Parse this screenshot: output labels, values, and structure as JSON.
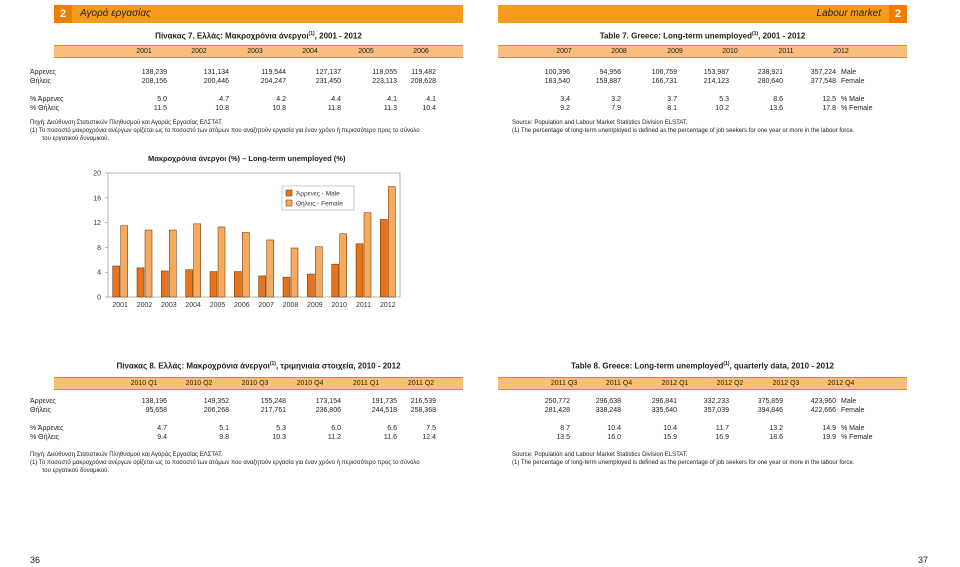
{
  "header": {
    "left_num": "2",
    "left_title": "Αγορά εργασίας",
    "right_title": "Labour market",
    "right_num": "2"
  },
  "table7": {
    "title_gr": "Πίνακας 7. Ελλάς: Μακροχρόνια άνεργοι",
    "title_gr_sup": "(1)",
    "title_gr_tail": ", 2001 - 2012",
    "title_en": "Table 7. Greece: Long-term unemployed",
    "title_en_sup": "(1)",
    "title_en_tail": ", 2001 - 2012",
    "years_left": [
      "2001",
      "2002",
      "2003",
      "2004",
      "2005",
      "2006"
    ],
    "years_right": [
      "2007",
      "2008",
      "2009",
      "2010",
      "2011",
      "2012"
    ],
    "rows": [
      {
        "label_gr": "Άρρενες",
        "label_en": "Male",
        "left": [
          "138,239",
          "131,134",
          "119,544",
          "127,137",
          "118,055",
          "119,482"
        ],
        "right": [
          "100,396",
          "94,956",
          "106,759",
          "153,987",
          "238,921",
          "357,224"
        ]
      },
      {
        "label_gr": "Θήλεις",
        "label_en": "Female",
        "left": [
          "208,156",
          "200,446",
          "204,247",
          "231,450",
          "223,113",
          "208,628"
        ],
        "right": [
          "183,540",
          "159,887",
          "166,731",
          "214,123",
          "280,640",
          "377,548"
        ]
      },
      {
        "label_gr": "% Άρρενες",
        "label_en": "% Male",
        "left": [
          "5.0",
          "4.7",
          "4.2",
          "4.4",
          "4.1",
          "4.1"
        ],
        "right": [
          "3.4",
          "3.2",
          "3.7",
          "5.3",
          "8.6",
          "12.5"
        ]
      },
      {
        "label_gr": "% Θήλεις",
        "label_en": "% Female",
        "left": [
          "11.5",
          "10.8",
          "10.8",
          "11.8",
          "11.3",
          "10.4"
        ],
        "right": [
          "9.2",
          "7.9",
          "8.1",
          "10.2",
          "13.6",
          "17.8"
        ]
      }
    ],
    "source_gr": "Πηγή: Διεύθυνση Στατιστικών Πληθυσμού και Αγοράς Εργασίας ΕΛΣΤΑΤ.",
    "note_gr_1": "(1) Το ποσοστό μακροχρόνια ανέργων ορίζεται ως το ποσοστό των ατόμων που αναζητούν εργασία για έναν χρόνο ή περισσότερο προς το σύνολο",
    "note_gr_2": "του εργατικού δυναμικού.",
    "source_en": "Source: Population and Labour Market Statistics Division ELSTAT.",
    "note_en": "(1) The percentage of long-term unemployed is defined as the percentage of job seekers for one year or more in the labour force."
  },
  "chart_data": {
    "type": "bar",
    "title": "Μακροχρόνια άνεργοι (%) – Long-term unemployed (%)",
    "categories": [
      "2001",
      "2002",
      "2003",
      "2004",
      "2005",
      "2006",
      "2007",
      "2008",
      "2009",
      "2010",
      "2011",
      "2012"
    ],
    "series": [
      {
        "name": "Άρρενες - Male",
        "color": "#e8731a",
        "values": [
          5.0,
          4.7,
          4.2,
          4.4,
          4.1,
          4.1,
          3.4,
          3.2,
          3.7,
          5.3,
          8.6,
          12.5
        ]
      },
      {
        "name": "Θήλεις - Female",
        "color": "#f7a95e",
        "values": [
          11.5,
          10.8,
          10.8,
          11.8,
          11.3,
          10.4,
          9.2,
          7.9,
          8.1,
          10.2,
          13.6,
          17.8
        ]
      }
    ],
    "ylim": [
      0,
      20
    ],
    "yticks": [
      0,
      4,
      8,
      12,
      16,
      20
    ],
    "legend": "top-right"
  },
  "table8": {
    "title_gr": "Πίνακας 8. Ελλάς: Μακροχρόνια άνεργοι",
    "title_gr_sup": "(1)",
    "title_gr_tail": ", τριμηνιαία στοιχεία, 2010 - 2012",
    "title_en": "Table 8. Greece: Long-term unemployed",
    "title_en_sup": "(1)",
    "title_en_tail": ", quarterly data, 2010 - 2012",
    "periods_left": [
      "2010 Q1",
      "2010 Q2",
      "2010 Q3",
      "2010 Q4",
      "2011 Q1",
      "2011 Q2"
    ],
    "periods_right": [
      "2011 Q3",
      "2011 Q4",
      "2012 Q1",
      "2012 Q2",
      "2012 Q3",
      "2012 Q4"
    ],
    "rows": [
      {
        "label_gr": "Άρρενες",
        "label_en": "Male",
        "left": [
          "138,196",
          "149,352",
          "155,248",
          "173,154",
          "191,735",
          "216,539"
        ],
        "right": [
          "250,772",
          "296,638",
          "296,841",
          "332,233",
          "375,859",
          "423,960"
        ]
      },
      {
        "label_gr": "Θήλεις",
        "label_en": "Female",
        "left": [
          "95,658",
          "206,268",
          "217,761",
          "236,806",
          "244,518",
          "258,368"
        ],
        "right": [
          "281,428",
          "338,248",
          "335,640",
          "357,039",
          "394,846",
          "422,666"
        ]
      },
      {
        "label_gr": "% Άρρενες",
        "label_en": "% Male",
        "left": [
          "4.7",
          "5.1",
          "5.3",
          "6.0",
          "6.6",
          "7.5"
        ],
        "right": [
          "8.7",
          "10.4",
          "10.4",
          "11.7",
          "13.2",
          "14.9"
        ]
      },
      {
        "label_gr": "% Θήλεις",
        "label_en": "% Female",
        "left": [
          "9.4",
          "9.8",
          "10.3",
          "11.2",
          "11.6",
          "12.4"
        ],
        "right": [
          "13.5",
          "16.0",
          "15.9",
          "16.9",
          "18.6",
          "19.9"
        ]
      }
    ],
    "source_gr": "Πηγή: Διεύθυνση Στατιστικών Πληθυσμού και Αγοράς Εργασίας ΕΛΣΤΑΤ.",
    "note_gr_1": "(1) Το ποσοστό μακροχρόνια ανέργων ορίζεται ως το ποσοστό των ατόμων που αναζητούν εργασία για έναν χρόνο ή περισσότερο προς το σύνολο",
    "note_gr_2": "του εργατικού δυναμικού.",
    "source_en": "Source: Population and Labour Market Statistics Division ELSTAT.",
    "note_en": "(1) The percentage of long-term unemployed is defined as the percentage of job seekers for one year or more in the labour force."
  },
  "page_numbers": {
    "left": "36",
    "right": "37"
  }
}
